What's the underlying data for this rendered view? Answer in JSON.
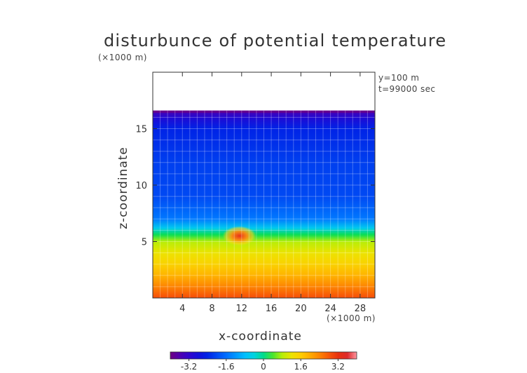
{
  "chart_data": {
    "type": "heatmap",
    "title": "disturbunce of potential temperature",
    "xlabel": "x-coordinate",
    "ylabel": "z-coordinate",
    "x_unit": "(×1000 m)",
    "y_unit": "(×1000 m)",
    "annotations": [
      "y=100  m",
      "t=99000 sec"
    ],
    "xlim": [
      0,
      30
    ],
    "ylim": [
      0,
      20
    ],
    "x_ticks": [
      4,
      8,
      12,
      16,
      20,
      24,
      28
    ],
    "y_ticks": [
      5,
      10,
      15
    ],
    "colorbar": {
      "range": [
        -4,
        4
      ],
      "ticks": [
        "-3.2",
        "-1.6",
        "0",
        "1.6",
        "3.2"
      ],
      "tick_values": [
        -3.2,
        -1.6,
        0,
        1.6,
        3.2
      ]
    },
    "field_summary": {
      "x_range_of_field": [
        0,
        30
      ],
      "top_boundary_z": 16.6,
      "profile": [
        {
          "z": 0.0,
          "value": 2.9
        },
        {
          "z": 1.0,
          "value": 2.4
        },
        {
          "z": 2.0,
          "value": 1.9
        },
        {
          "z": 3.0,
          "value": 1.5
        },
        {
          "z": 4.0,
          "value": 1.2
        },
        {
          "z": 5.0,
          "value": 0.8
        },
        {
          "z": 5.6,
          "value": 0.2
        },
        {
          "z": 6.2,
          "value": -0.6
        },
        {
          "z": 7.0,
          "value": -1.5
        },
        {
          "z": 9.0,
          "value": -2.0
        },
        {
          "z": 12.0,
          "value": -2.1
        },
        {
          "z": 15.0,
          "value": -2.4
        },
        {
          "z": 16.0,
          "value": -3.0
        },
        {
          "z": 16.6,
          "value": -3.6
        }
      ],
      "hot_spot": {
        "x": 11.7,
        "z": 5.5,
        "value": 3.0
      }
    }
  }
}
